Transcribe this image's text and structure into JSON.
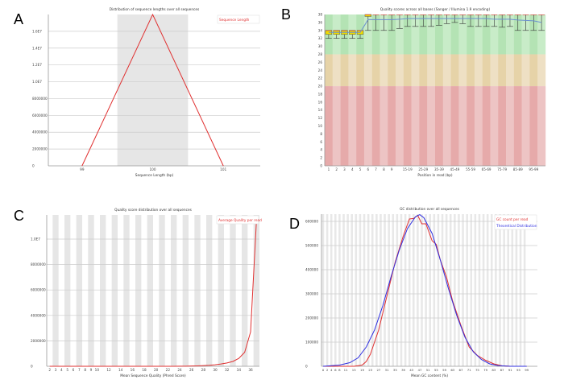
{
  "panels": {
    "a": "A",
    "b": "B",
    "c": "C",
    "d": "D"
  },
  "chart_data": [
    {
      "id": "a",
      "type": "line",
      "title": "Distribution of sequence lengths over all sequences",
      "xlabel": "Sequence Length (bp)",
      "ylabel": "",
      "categories": [
        "99",
        "100",
        "101"
      ],
      "series": [
        {
          "name": "Sequence Length",
          "color": "#e03030",
          "values": [
            0,
            18000000,
            0
          ]
        }
      ],
      "yticks": [
        {
          "v": 0,
          "label": "0"
        },
        {
          "v": 2000000,
          "label": "2000000"
        },
        {
          "v": 4000000,
          "label": "4000000"
        },
        {
          "v": 6000000,
          "label": "6000000"
        },
        {
          "v": 8000000,
          "label": "8000000"
        },
        {
          "v": 10000000,
          "label": "1.0E7"
        },
        {
          "v": 12000000,
          "label": "1.2E7"
        },
        {
          "v": 14000000,
          "label": "1.4E7"
        },
        {
          "v": 16000000,
          "label": "1.6E7"
        }
      ],
      "ylim": [
        0,
        18000000
      ],
      "legend": "top-right"
    },
    {
      "id": "b",
      "type": "boxplot",
      "title": "Quality scores across all bases (Sanger / Illumina 1.9 encoding)",
      "xlabel": "Position in read (bp)",
      "categories": [
        "1",
        "2",
        "3",
        "4",
        "5",
        "6",
        "7",
        "8",
        "9",
        "10-14",
        "15-19",
        "20-24",
        "25-29",
        "30-34",
        "35-39",
        "40-44",
        "45-49",
        "50-54",
        "55-59",
        "60-64",
        "65-69",
        "70-74",
        "75-79",
        "80-84",
        "85-89",
        "90-94",
        "95-99",
        "100-101"
      ],
      "tick_labels": [
        "1",
        "2",
        "3",
        "4",
        "5",
        "6",
        "7",
        "8",
        "9",
        "",
        "15-19",
        "",
        "25-29",
        "",
        "35-39",
        "",
        "45-49",
        "",
        "55-59",
        "",
        "65-69",
        "",
        "75-79",
        "",
        "85-89",
        "",
        "95-99",
        ""
      ],
      "box_low": [
        33,
        33,
        33,
        33,
        33,
        37.5,
        38,
        38,
        38,
        38,
        38,
        38,
        38,
        38,
        38,
        38,
        38,
        38,
        38,
        38,
        38,
        38,
        38,
        38,
        38,
        38,
        38,
        38
      ],
      "box_high": [
        34,
        34,
        34,
        34,
        34,
        38,
        38,
        38,
        38,
        38,
        38,
        38,
        38,
        38,
        38,
        38,
        38,
        38,
        38,
        38,
        38,
        38,
        38,
        38,
        38,
        38,
        38,
        38
      ],
      "whisker_low": [
        32,
        32,
        32,
        32,
        32,
        34,
        34,
        34,
        34,
        34.5,
        35,
        35,
        35,
        35,
        35.3,
        35.7,
        36,
        35.7,
        35,
        35,
        35,
        35,
        34.8,
        35,
        34,
        34,
        34,
        34
      ],
      "mean": [
        33.5,
        33.5,
        33.5,
        33.5,
        33.5,
        36.7,
        36.7,
        36.7,
        36.7,
        36.8,
        37,
        37,
        37,
        37,
        37,
        37,
        37,
        37,
        37,
        37,
        37,
        36.8,
        36.8,
        36.8,
        36.6,
        36.5,
        36.4,
        36
      ],
      "zones": [
        {
          "from": 28,
          "to": 38,
          "color": "green"
        },
        {
          "from": 20,
          "to": 28,
          "color": "orange"
        },
        {
          "from": 0,
          "to": 20,
          "color": "red"
        }
      ],
      "ylim": [
        0,
        38
      ],
      "yticks": [
        0,
        2,
        4,
        6,
        8,
        10,
        12,
        14,
        16,
        18,
        20,
        22,
        24,
        26,
        28,
        30,
        32,
        34,
        36,
        38
      ]
    },
    {
      "id": "c",
      "type": "line",
      "title": "Quality score distribution over all sequences",
      "xlabel": "Mean Sequence Quality (Phred Score)",
      "x": [
        2,
        3,
        4,
        5,
        6,
        7,
        8,
        9,
        10,
        11,
        12,
        13,
        14,
        15,
        16,
        17,
        18,
        19,
        20,
        21,
        22,
        23,
        24,
        25,
        26,
        27,
        28,
        29,
        30,
        31,
        32,
        33,
        34,
        35,
        36,
        37
      ],
      "tick_labels": [
        "2",
        "3",
        "4",
        "5",
        "6",
        "7",
        "8",
        "9",
        "10",
        "",
        "12",
        "",
        "14",
        "",
        "16",
        "",
        "18",
        "",
        "20",
        "",
        "22",
        "",
        "24",
        "",
        "26",
        "",
        "28",
        "",
        "30",
        "",
        "32",
        "",
        "34",
        "",
        "36",
        ""
      ],
      "series": [
        {
          "name": "Average Quality per read",
          "color": "#e03030",
          "values": [
            0,
            0,
            0,
            0,
            0,
            0,
            0,
            0,
            0,
            0,
            0,
            0,
            0,
            0,
            0,
            0,
            0,
            0,
            0,
            0,
            0,
            0,
            5000,
            10000,
            20000,
            35000,
            55000,
            80000,
            120000,
            180000,
            260000,
            380000,
            620000,
            1100000,
            2700000,
            11500000
          ]
        }
      ],
      "yticks": [
        {
          "v": 0,
          "label": "0"
        },
        {
          "v": 2000000,
          "label": "2000000"
        },
        {
          "v": 4000000,
          "label": "4000000"
        },
        {
          "v": 6000000,
          "label": "6000000"
        },
        {
          "v": 8000000,
          "label": "8000000"
        },
        {
          "v": 10000000,
          "label": "1.0E7"
        }
      ],
      "ylim": [
        0,
        11900000
      ],
      "legend": "top-right"
    },
    {
      "id": "d",
      "type": "line",
      "title": "GC distribution over all sequences",
      "xlabel": "Mean GC content (%)",
      "tick_labels": [
        "0",
        "2",
        "4",
        "6",
        "8",
        "11",
        "15",
        "19",
        "23",
        "27",
        "31",
        "35",
        "39",
        "43",
        "47",
        "51",
        "55",
        "59",
        "63",
        "67",
        "71",
        "75",
        "79",
        "83",
        "87",
        "91",
        "95",
        "99"
      ],
      "series": [
        {
          "name": "GC count per read",
          "color": "#e03030",
          "x": [
            0,
            15,
            19,
            21,
            23,
            27,
            31,
            35,
            39,
            42,
            44,
            46,
            48,
            50,
            53,
            55,
            57,
            60,
            63,
            67,
            71,
            75,
            79,
            83,
            87,
            91,
            99
          ],
          "values": [
            0,
            0,
            5000,
            20000,
            50000,
            150000,
            290000,
            430000,
            540000,
            610000,
            612000,
            625000,
            590000,
            590000,
            520000,
            505000,
            440000,
            370000,
            270000,
            170000,
            80000,
            45000,
            25000,
            10000,
            2000,
            0,
            0
          ]
        },
        {
          "name": "Theoretical Distribution",
          "color": "#3030e0",
          "x": [
            0,
            8,
            13,
            17,
            21,
            25,
            29,
            33,
            37,
            41,
            45,
            47,
            49,
            53,
            57,
            61,
            65,
            69,
            73,
            77,
            81,
            85,
            91,
            99
          ],
          "values": [
            0,
            5000,
            15000,
            35000,
            80000,
            150000,
            250000,
            370000,
            480000,
            570000,
            620000,
            628000,
            615000,
            550000,
            440000,
            320000,
            210000,
            120000,
            60000,
            28000,
            10000,
            3000,
            0,
            0
          ]
        }
      ],
      "yticks": [
        {
          "v": 0,
          "label": "0"
        },
        {
          "v": 100000,
          "label": "100000"
        },
        {
          "v": 200000,
          "label": "200000"
        },
        {
          "v": 300000,
          "label": "300000"
        },
        {
          "v": 400000,
          "label": "400000"
        },
        {
          "v": 500000,
          "label": "500000"
        },
        {
          "v": 600000,
          "label": "600000"
        }
      ],
      "xlim": [
        0,
        105
      ],
      "ylim": [
        0,
        630000
      ],
      "legend": "top-right"
    }
  ]
}
